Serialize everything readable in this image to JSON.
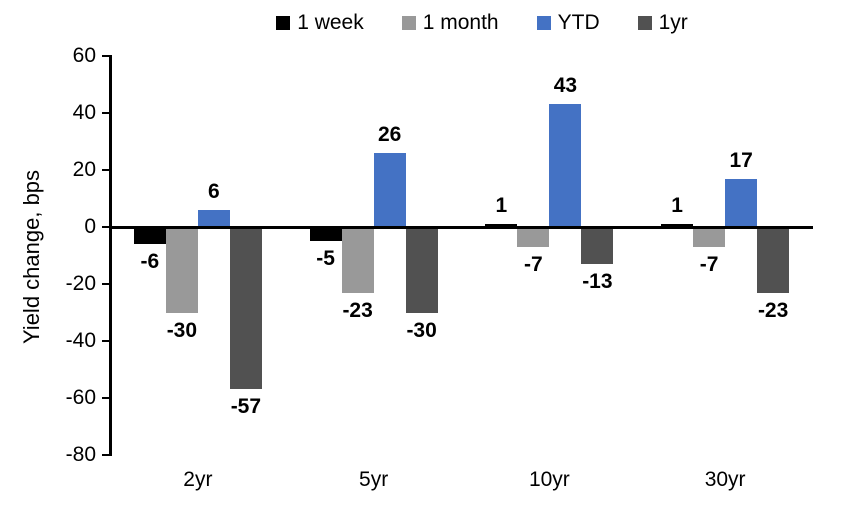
{
  "chart_data": {
    "type": "bar",
    "title": "",
    "xlabel": "",
    "ylabel": "Yield change, bps",
    "categories": [
      "2yr",
      "5yr",
      "10yr",
      "30yr"
    ],
    "series": [
      {
        "name": "1 week",
        "color": "#000000",
        "values": [
          -6,
          -5,
          1,
          1
        ]
      },
      {
        "name": "1 month",
        "color": "#999999",
        "values": [
          -30,
          -23,
          -7,
          -7
        ]
      },
      {
        "name": "YTD",
        "color": "#4472C4",
        "values": [
          6,
          26,
          43,
          17
        ]
      },
      {
        "name": "1yr",
        "color": "#515151",
        "values": [
          -57,
          -30,
          -13,
          -23
        ]
      }
    ],
    "ylim": [
      -80,
      60
    ],
    "yticks": [
      60,
      40,
      20,
      0,
      -20,
      -40,
      -60,
      -80
    ],
    "grid": false,
    "legend_position": "top",
    "data_labels": true,
    "axis_color": "#000000",
    "background_color": "#FFFFFF"
  }
}
